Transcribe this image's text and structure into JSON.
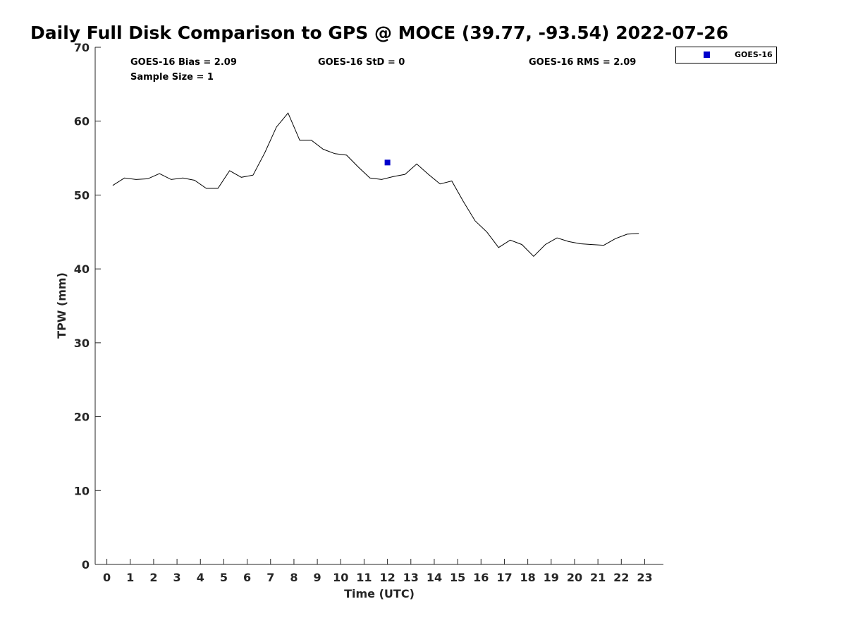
{
  "chart_data": {
    "type": "line",
    "title": "Daily Full Disk Comparison to GPS @ MOCE (39.77, -93.54) 2022-07-26",
    "xlabel": "Time (UTC)",
    "ylabel": "TPW (mm)",
    "xlim": [
      -0.5,
      23.8
    ],
    "ylim": [
      0,
      70
    ],
    "x_ticks": [
      0,
      1,
      2,
      3,
      4,
      5,
      6,
      7,
      8,
      9,
      10,
      11,
      12,
      13,
      14,
      15,
      16,
      17,
      18,
      19,
      20,
      21,
      22,
      23
    ],
    "y_ticks": [
      0,
      10,
      20,
      30,
      40,
      50,
      60,
      70
    ],
    "grid": false,
    "legend_position": "top-right",
    "series": [
      {
        "kind": "line",
        "color": "#000000",
        "x": [
          0.25,
          0.75,
          1.25,
          1.75,
          2.25,
          2.75,
          3.25,
          3.75,
          4.25,
          4.75,
          5.25,
          5.75,
          6.25,
          6.75,
          7.25,
          7.75,
          8.25,
          8.75,
          9.25,
          9.75,
          10.25,
          10.75,
          11.25,
          11.75,
          12.25,
          12.75,
          13.25,
          13.75,
          14.25,
          14.75,
          15.25,
          15.75,
          16.25,
          16.75,
          17.25,
          17.75,
          18.25,
          18.75,
          19.25,
          19.75,
          20.25,
          20.75,
          21.25,
          21.75,
          22.25,
          22.75
        ],
        "y": [
          51.3,
          52.3,
          52.1,
          52.2,
          52.9,
          52.1,
          52.3,
          52.0,
          50.9,
          50.9,
          53.3,
          52.4,
          52.7,
          55.7,
          59.2,
          61.1,
          57.4,
          57.4,
          56.2,
          55.6,
          55.4,
          53.8,
          52.3,
          52.1,
          52.5,
          52.8,
          54.2,
          52.8,
          51.5,
          51.9,
          49.1,
          46.5,
          45.0,
          42.9,
          43.9,
          43.3,
          41.7,
          43.3,
          44.2,
          43.7,
          43.4,
          43.3,
          43.2,
          44.1,
          44.7,
          44.8
        ]
      },
      {
        "name": "GOES-16",
        "kind": "scatter",
        "marker": "square",
        "color": "#0000cc",
        "x": [
          12.0
        ],
        "y": [
          54.4
        ]
      }
    ],
    "legend": [
      {
        "label": "GOES-16",
        "color": "#0000cc",
        "marker": "square"
      }
    ],
    "stats": {
      "bias": "GOES-16 Bias = 2.09",
      "std": "GOES-16 StD = 0",
      "rms": "GOES-16 RMS = 2.09",
      "sample": "Sample Size = 1"
    }
  }
}
